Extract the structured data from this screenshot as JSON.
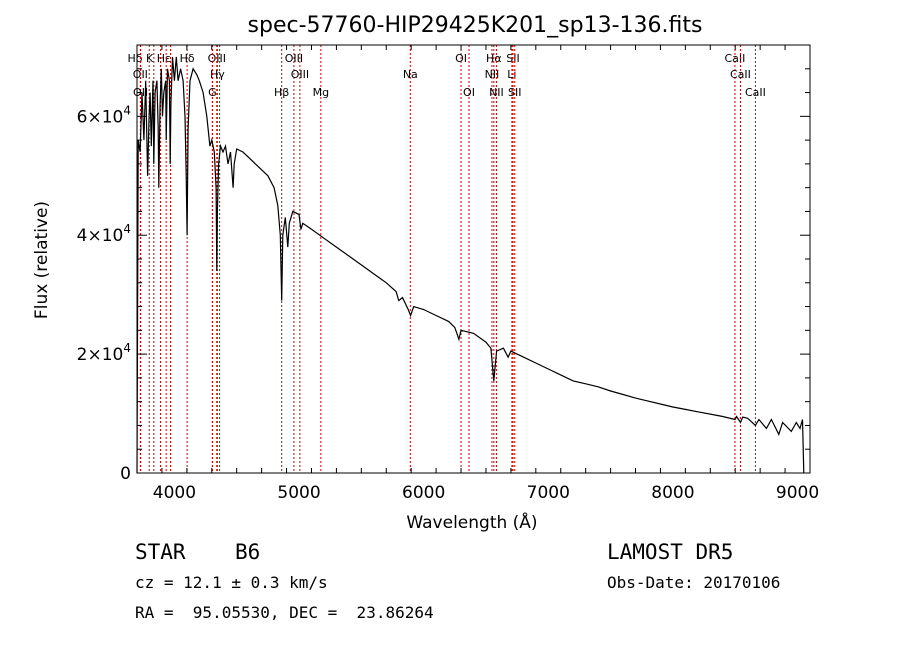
{
  "chart_data": {
    "type": "line",
    "title": "spec-57760-HIP29425K201_sp13-136.fits",
    "xlabel": "Wavelength (Å)",
    "ylabel": "Flux (relative)",
    "xlim": [
      3700,
      9100
    ],
    "ylim": [
      0,
      72000
    ],
    "x_ticks": [
      {
        "value": 4000,
        "label": "4000"
      },
      {
        "value": 5000,
        "label": "5000"
      },
      {
        "value": 6000,
        "label": "6000"
      },
      {
        "value": 7000,
        "label": "7000"
      },
      {
        "value": 8000,
        "label": "8000"
      },
      {
        "value": 9000,
        "label": "9000"
      }
    ],
    "y_ticks": [
      {
        "value": 0,
        "mant": "0",
        "exp": ""
      },
      {
        "value": 20000,
        "mant": "2×10",
        "exp": "4"
      },
      {
        "value": 40000,
        "mant": "4×10",
        "exp": "4"
      },
      {
        "value": 60000,
        "mant": "6×10",
        "exp": "4"
      }
    ],
    "series": [
      {
        "line_color": "#000000",
        "points": [
          [
            3700,
            0
          ],
          [
            3710,
            56000
          ],
          [
            3725,
            54000
          ],
          [
            3740,
            64000
          ],
          [
            3755,
            56000
          ],
          [
            3770,
            66000
          ],
          [
            3785,
            50000
          ],
          [
            3797,
            60000
          ],
          [
            3805,
            64000
          ],
          [
            3815,
            55000
          ],
          [
            3828,
            66000
          ],
          [
            3835,
            52000
          ],
          [
            3845,
            64000
          ],
          [
            3860,
            66000
          ],
          [
            3870,
            58000
          ],
          [
            3875,
            48000
          ],
          [
            3885,
            62000
          ],
          [
            3895,
            68000
          ],
          [
            3905,
            60000
          ],
          [
            3915,
            64000
          ],
          [
            3930,
            66000
          ],
          [
            3934,
            56000
          ],
          [
            3945,
            68000
          ],
          [
            3960,
            66000
          ],
          [
            3966,
            52000
          ],
          [
            3972,
            62000
          ],
          [
            3985,
            70000
          ],
          [
            4000,
            66000
          ],
          [
            4015,
            70000
          ],
          [
            4030,
            66000
          ],
          [
            4050,
            68000
          ],
          [
            4070,
            66000
          ],
          [
            4085,
            60000
          ],
          [
            4095,
            50000
          ],
          [
            4102,
            40000
          ],
          [
            4110,
            58000
          ],
          [
            4125,
            66000
          ],
          [
            4150,
            68000
          ],
          [
            4180,
            67000
          ],
          [
            4200,
            66000
          ],
          [
            4230,
            64000
          ],
          [
            4260,
            60000
          ],
          [
            4285,
            55000
          ],
          [
            4300,
            56000
          ],
          [
            4320,
            54000
          ],
          [
            4335,
            48000
          ],
          [
            4340,
            34000
          ],
          [
            4345,
            44000
          ],
          [
            4355,
            52000
          ],
          [
            4370,
            55000
          ],
          [
            4390,
            54000
          ],
          [
            4410,
            55000
          ],
          [
            4430,
            52000
          ],
          [
            4450,
            54000
          ],
          [
            4471,
            48000
          ],
          [
            4480,
            52000
          ],
          [
            4500,
            54500
          ],
          [
            4550,
            54000
          ],
          [
            4600,
            53000
          ],
          [
            4650,
            52000
          ],
          [
            4700,
            51000
          ],
          [
            4750,
            50000
          ],
          [
            4800,
            48000
          ],
          [
            4830,
            45000
          ],
          [
            4850,
            40000
          ],
          [
            4861,
            29000
          ],
          [
            4870,
            40000
          ],
          [
            4890,
            43000
          ],
          [
            4910,
            38000
          ],
          [
            4922,
            42000
          ],
          [
            4950,
            44000
          ],
          [
            5000,
            43500
          ],
          [
            5015,
            41000
          ],
          [
            5030,
            42000
          ],
          [
            5100,
            41000
          ],
          [
            5200,
            39500
          ],
          [
            5300,
            38000
          ],
          [
            5400,
            36500
          ],
          [
            5500,
            35000
          ],
          [
            5600,
            33500
          ],
          [
            5700,
            32000
          ],
          [
            5780,
            30500
          ],
          [
            5800,
            29000
          ],
          [
            5830,
            29500
          ],
          [
            5876,
            27500
          ],
          [
            5895,
            26500
          ],
          [
            5920,
            28000
          ],
          [
            6000,
            27500
          ],
          [
            6100,
            26500
          ],
          [
            6200,
            25500
          ],
          [
            6250,
            24500
          ],
          [
            6283,
            22500
          ],
          [
            6300,
            24000
          ],
          [
            6400,
            23500
          ],
          [
            6500,
            22000
          ],
          [
            6540,
            21000
          ],
          [
            6563,
            15500
          ],
          [
            6585,
            20500
          ],
          [
            6640,
            21000
          ],
          [
            6678,
            19500
          ],
          [
            6700,
            20500
          ],
          [
            6800,
            19500
          ],
          [
            6900,
            18500
          ],
          [
            7000,
            17500
          ],
          [
            7100,
            16500
          ],
          [
            7200,
            15500
          ],
          [
            7300,
            15000
          ],
          [
            7400,
            14500
          ],
          [
            7500,
            13800
          ],
          [
            7600,
            13200
          ],
          [
            7700,
            12600
          ],
          [
            7800,
            12100
          ],
          [
            7900,
            11600
          ],
          [
            8000,
            11100
          ],
          [
            8100,
            10700
          ],
          [
            8200,
            10300
          ],
          [
            8300,
            9900
          ],
          [
            8400,
            9500
          ],
          [
            8498,
            9000
          ],
          [
            8510,
            9500
          ],
          [
            8542,
            8500
          ],
          [
            8560,
            9400
          ],
          [
            8600,
            9200
          ],
          [
            8662,
            8000
          ],
          [
            8690,
            9000
          ],
          [
            8750,
            7500
          ],
          [
            8790,
            9000
          ],
          [
            8850,
            6500
          ],
          [
            8880,
            8500
          ],
          [
            8950,
            7000
          ],
          [
            8990,
            8500
          ],
          [
            9020,
            7500
          ],
          [
            9040,
            9000
          ],
          [
            9050,
            0
          ]
        ]
      }
    ],
    "lines": [
      {
        "name": "Hδ K Hε",
        "wl": 3798,
        "row": 0
      },
      {
        "name": "OII",
        "wl": 3727,
        "row": 1
      },
      {
        "name": "OII",
        "wl": 3729,
        "row": 2
      },
      {
        "name": "",
        "wl": 3835,
        "row": -1
      },
      {
        "name": "",
        "wl": 3889,
        "row": -1
      },
      {
        "name": "",
        "wl": 3934,
        "row": -1
      },
      {
        "name": "",
        "wl": 3969,
        "row": -1
      },
      {
        "name": "Hδ",
        "wl": 4102,
        "row": 0
      },
      {
        "name": "",
        "wl": 4305,
        "row": -1
      },
      {
        "name": "OIII",
        "wl": 4340,
        "row": 0
      },
      {
        "name": "Hγ",
        "wl": 4345,
        "row": 1
      },
      {
        "name": "G",
        "wl": 4305,
        "row": 2
      },
      {
        "name": "OIII",
        "wl": 4363,
        "row": -1
      },
      {
        "name": "Hβ",
        "wl": 4861,
        "row": 2
      },
      {
        "name": "OIII",
        "wl": 4959,
        "row": 0
      },
      {
        "name": "OIII",
        "wl": 5007,
        "row": 1
      },
      {
        "name": "Mg",
        "wl": 5175,
        "row": 2
      },
      {
        "name": "Na",
        "wl": 5893,
        "row": 1
      },
      {
        "name": "OI",
        "wl": 6300,
        "row": 0
      },
      {
        "name": "OI",
        "wl": 6364,
        "row": 2
      },
      {
        "name": "Hα",
        "wl": 6563,
        "row": 0
      },
      {
        "name": "NII",
        "wl": 6548,
        "row": 1
      },
      {
        "name": "NII",
        "wl": 6584,
        "row": 2
      },
      {
        "name": "SII",
        "wl": 6717,
        "row": 0
      },
      {
        "name": "Li",
        "wl": 6708,
        "row": 1
      },
      {
        "name": "SII",
        "wl": 6731,
        "row": 2
      },
      {
        "name": "CaII",
        "wl": 8498,
        "row": 0
      },
      {
        "name": "CaII",
        "wl": 8542,
        "row": 1
      },
      {
        "name": "CaII",
        "wl": 8662,
        "row": 2
      }
    ]
  },
  "info": {
    "obj_class": "STAR",
    "subclass": "B6",
    "survey": "LAMOST DR5",
    "cz": "cz = 12.1 ± 0.3 km/s",
    "obs_date": "Obs-Date: 20170106",
    "radec": "RA =  95.05530, DEC =  23.86264"
  }
}
